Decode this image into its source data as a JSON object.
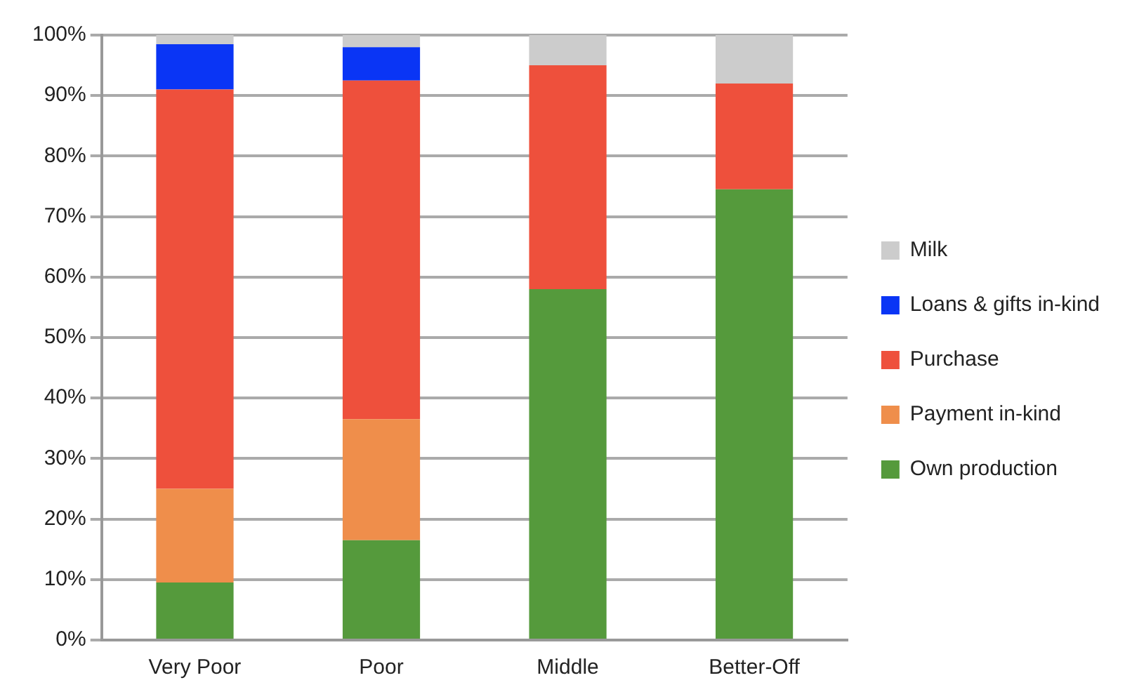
{
  "chart_data": {
    "type": "bar",
    "stacked": true,
    "categories": [
      "Very Poor",
      "Poor",
      "Middle",
      "Better-Off"
    ],
    "series": [
      {
        "name": "Own production",
        "color": "#559a3c",
        "values": [
          9.5,
          16.5,
          58,
          74.5
        ]
      },
      {
        "name": "Payment in-kind",
        "color": "#ef8e4b",
        "values": [
          15.5,
          20,
          0,
          0
        ]
      },
      {
        "name": "Purchase",
        "color": "#ee503c",
        "values": [
          66,
          56,
          37,
          17.5
        ]
      },
      {
        "name": "Loans & gifts in-kind",
        "color": "#0a35f5",
        "values": [
          7.5,
          5.5,
          0,
          0
        ]
      },
      {
        "name": "Milk",
        "color": "#cccccc",
        "values": [
          1.5,
          2,
          5,
          8
        ]
      }
    ],
    "ylim": [
      0,
      100
    ],
    "yticks": [
      {
        "value": 0,
        "label": "0%"
      },
      {
        "value": 10,
        "label": "10%"
      },
      {
        "value": 20,
        "label": "20%"
      },
      {
        "value": 30,
        "label": "30%"
      },
      {
        "value": 40,
        "label": "40%"
      },
      {
        "value": 50,
        "label": "50%"
      },
      {
        "value": 60,
        "label": "60%"
      },
      {
        "value": 70,
        "label": "70%"
      },
      {
        "value": 80,
        "label": "80%"
      },
      {
        "value": 90,
        "label": "90%"
      },
      {
        "value": 100,
        "label": "100%"
      }
    ],
    "grid": "y",
    "legend": "right"
  }
}
